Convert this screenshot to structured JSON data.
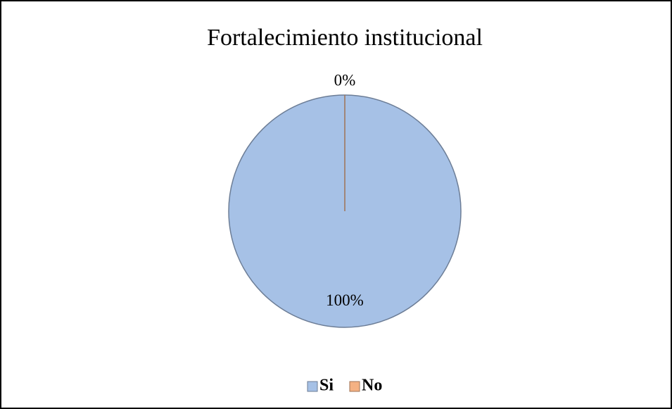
{
  "chart_data": {
    "type": "pie",
    "title": "Fortalecimiento institucional",
    "categories": [
      "Si",
      "No"
    ],
    "values": [
      100,
      0
    ],
    "value_labels": [
      "100%",
      "0%"
    ],
    "colors": [
      "#a6c1e6",
      "#f4b183"
    ],
    "legend": "bottom"
  }
}
